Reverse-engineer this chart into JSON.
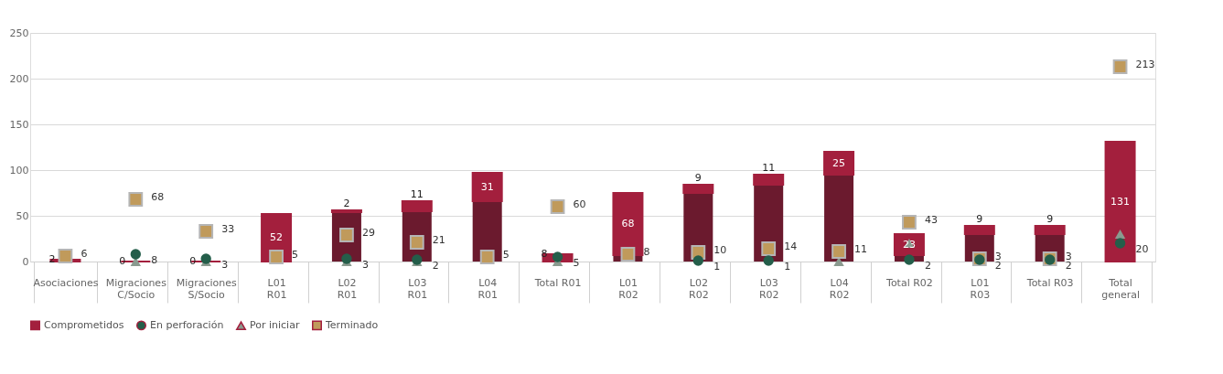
{
  "chart_data": {
    "type": "bar",
    "stacked": true,
    "categories": [
      "Asociaciones",
      "Migraciones\nC/Socio",
      "Migraciones\nS/Socio",
      "L01\nR01",
      "L02\nR01",
      "L03\nR01",
      "L04\nR01",
      "Total R01",
      "L01\nR02",
      "L02\nR02",
      "L03\nR02",
      "L04\nR02",
      "Total R02",
      "L01\nR03",
      "Total R03",
      "Total\ngeneral"
    ],
    "ylim": [
      0,
      250
    ],
    "yticks": [
      0,
      50,
      100,
      150,
      200,
      250
    ],
    "grid": "y",
    "legend": "bottom",
    "series": [
      {
        "type": "bar",
        "color": "#6b1a2e",
        "values": [
          0,
          0,
          0,
          0,
          54,
          55,
          66,
          0,
          7,
          75,
          84,
          95,
          7,
          30,
          30,
          0
        ]
      },
      {
        "type": "bar",
        "name": "Comprometidos",
        "color": "#a31f3d",
        "values": [
          2,
          0,
          0,
          52,
          2,
          11,
          31,
          8,
          68,
          9,
          11,
          25,
          23,
          9,
          9,
          131
        ],
        "value_labels": [
          "2",
          "0",
          "0",
          "52",
          "2",
          "11",
          "31",
          "8",
          "68",
          "9",
          "11",
          "25",
          "23",
          "9",
          "9",
          "131"
        ]
      },
      {
        "type": "scatter",
        "name": "En perforación",
        "color": "#245e4a",
        "marker": "circle",
        "values": [
          null,
          8,
          3,
          null,
          3,
          2,
          null,
          5,
          null,
          1,
          1,
          null,
          2,
          2,
          2,
          20
        ],
        "value_labels": [
          null,
          "8",
          "3",
          null,
          "3",
          "2",
          null,
          "5",
          null,
          "1",
          "1",
          null,
          "2",
          "2",
          "2",
          "20"
        ]
      },
      {
        "type": "scatter",
        "name": "Por iniciar",
        "color": "#8a9a8f",
        "marker": "triangle",
        "values": [
          null,
          0,
          0,
          null,
          0,
          0,
          null,
          0,
          null,
          null,
          null,
          0,
          20,
          null,
          null,
          30
        ]
      },
      {
        "type": "scatter",
        "name": "Terminado",
        "color": "#c09a5b",
        "marker": "square",
        "values": [
          6,
          68,
          33,
          5,
          29,
          21,
          5,
          60,
          8,
          10,
          14,
          11,
          43,
          3,
          3,
          213
        ],
        "value_labels": [
          "6",
          "68",
          "33",
          "5",
          "29",
          "21",
          "5",
          "60",
          "8",
          "10",
          "14",
          "11",
          "43",
          "3",
          "3",
          "213"
        ]
      }
    ]
  }
}
